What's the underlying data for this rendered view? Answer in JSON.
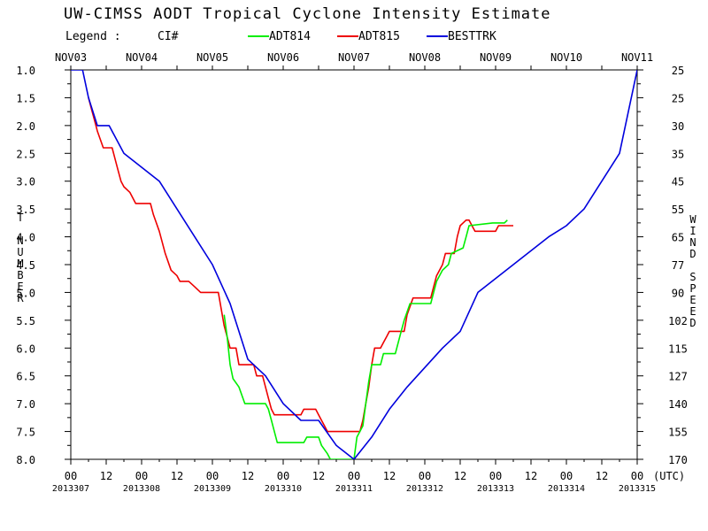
{
  "chart_data": {
    "type": "line",
    "title": "UW-CIMSS AODT Tropical Cyclone Intensity Estimate",
    "legend": {
      "label": "Legend :",
      "ci_label": "CI#",
      "entries": [
        {
          "name": "ADT814",
          "color": "#00ee00"
        },
        {
          "name": "ADT815",
          "color": "#ee0000"
        },
        {
          "name": "BESTTRK",
          "color": "#0000dd"
        }
      ]
    },
    "ylabel_left": "T NUMBER",
    "ylabel_right": "WIND SPEED",
    "x_unit_label": "(UTC)",
    "xlim_hours": [
      0,
      192
    ],
    "ylim": [
      1.0,
      8.0
    ],
    "y_inverted": true,
    "top_dates": [
      "NOV03",
      "NOV04",
      "NOV05",
      "NOV06",
      "NOV07",
      "NOV08",
      "NOV09",
      "NOV10",
      "NOV11"
    ],
    "julian_dates": [
      "2013307",
      "2013308",
      "2013309",
      "2013310",
      "2013311",
      "2013312",
      "2013313",
      "2013314",
      "2013315"
    ],
    "x_tick_labels": [
      "00",
      "12",
      "00",
      "12",
      "00",
      "12",
      "00",
      "12",
      "00",
      "12",
      "00",
      "12",
      "00",
      "12",
      "00",
      "12",
      "00"
    ],
    "left_ticks": [
      "1.0",
      "1.5",
      "2.0",
      "2.5",
      "3.0",
      "3.5",
      "4.0",
      "4.5",
      "5.0",
      "5.5",
      "6.0",
      "6.5",
      "7.0",
      "7.5",
      "8.0"
    ],
    "right_ticks": [
      "25",
      "25",
      "30",
      "35",
      "45",
      "55",
      "65",
      "77",
      "90",
      "102",
      "115",
      "127",
      "140",
      "155",
      "170"
    ],
    "series": [
      {
        "name": "ADT814",
        "color": "#00ee00",
        "points": [
          [
            52,
            5.4
          ],
          [
            53,
            5.8
          ],
          [
            54,
            6.3
          ],
          [
            55,
            6.55
          ],
          [
            57,
            6.7
          ],
          [
            59,
            7.0
          ],
          [
            66,
            7.0
          ],
          [
            67,
            7.1
          ],
          [
            68,
            7.3
          ],
          [
            69,
            7.5
          ],
          [
            70,
            7.7
          ],
          [
            79,
            7.7
          ],
          [
            80,
            7.6
          ],
          [
            84,
            7.6
          ],
          [
            85,
            7.75
          ],
          [
            87,
            7.9
          ],
          [
            88,
            8.0
          ],
          [
            96,
            8.0
          ],
          [
            97,
            7.6
          ],
          [
            99,
            7.4
          ],
          [
            100,
            7.0
          ],
          [
            101,
            6.6
          ],
          [
            102,
            6.3
          ],
          [
            105,
            6.3
          ],
          [
            106,
            6.1
          ],
          [
            110,
            6.1
          ],
          [
            111,
            5.9
          ],
          [
            112,
            5.7
          ],
          [
            113,
            5.5
          ],
          [
            115,
            5.2
          ],
          [
            122,
            5.2
          ],
          [
            123,
            5.0
          ],
          [
            124,
            4.8
          ],
          [
            126,
            4.6
          ],
          [
            128,
            4.5
          ],
          [
            129,
            4.3
          ],
          [
            133,
            4.2
          ],
          [
            134,
            4.0
          ],
          [
            135,
            3.8
          ],
          [
            143,
            3.75
          ],
          [
            147,
            3.75
          ],
          [
            148,
            3.7
          ]
        ]
      },
      {
        "name": "ADT815",
        "color": "#ee0000",
        "points": [
          [
            6,
            1.5
          ],
          [
            7,
            1.7
          ],
          [
            8,
            1.9
          ],
          [
            9,
            2.1
          ],
          [
            11,
            2.4
          ],
          [
            14,
            2.4
          ],
          [
            15,
            2.6
          ],
          [
            16,
            2.8
          ],
          [
            17,
            3.0
          ],
          [
            18,
            3.1
          ],
          [
            20,
            3.2
          ],
          [
            22,
            3.4
          ],
          [
            27,
            3.4
          ],
          [
            28,
            3.6
          ],
          [
            30,
            3.9
          ],
          [
            32,
            4.3
          ],
          [
            34,
            4.6
          ],
          [
            36,
            4.7
          ],
          [
            37,
            4.8
          ],
          [
            40,
            4.8
          ],
          [
            42,
            4.9
          ],
          [
            44,
            5.0
          ],
          [
            50,
            5.0
          ],
          [
            51,
            5.3
          ],
          [
            52,
            5.6
          ],
          [
            53,
            5.8
          ],
          [
            54,
            6.0
          ],
          [
            56,
            6.0
          ],
          [
            57,
            6.3
          ],
          [
            62,
            6.3
          ],
          [
            63,
            6.5
          ],
          [
            65,
            6.5
          ],
          [
            66,
            6.7
          ],
          [
            67,
            6.9
          ],
          [
            68,
            7.1
          ],
          [
            69,
            7.2
          ],
          [
            78,
            7.2
          ],
          [
            79,
            7.1
          ],
          [
            83,
            7.1
          ],
          [
            84,
            7.2
          ],
          [
            85,
            7.3
          ],
          [
            86,
            7.4
          ],
          [
            87,
            7.5
          ],
          [
            98,
            7.5
          ],
          [
            99,
            7.3
          ],
          [
            100,
            7.0
          ],
          [
            101,
            6.7
          ],
          [
            102,
            6.3
          ],
          [
            103,
            6.0
          ],
          [
            105,
            6.0
          ],
          [
            106,
            5.9
          ],
          [
            107,
            5.8
          ],
          [
            108,
            5.7
          ],
          [
            113,
            5.7
          ],
          [
            114,
            5.4
          ],
          [
            116,
            5.1
          ],
          [
            122,
            5.1
          ],
          [
            123,
            4.9
          ],
          [
            124,
            4.7
          ],
          [
            126,
            4.5
          ],
          [
            127,
            4.3
          ],
          [
            130,
            4.3
          ],
          [
            131,
            4.0
          ],
          [
            132,
            3.8
          ],
          [
            134,
            3.7
          ],
          [
            135,
            3.7
          ],
          [
            136,
            3.8
          ],
          [
            137,
            3.9
          ],
          [
            144,
            3.9
          ],
          [
            145,
            3.8
          ],
          [
            150,
            3.8
          ]
        ]
      },
      {
        "name": "BESTTRK",
        "color": "#0000dd",
        "points": [
          [
            0,
            1.0
          ],
          [
            4,
            1.0
          ],
          [
            6,
            1.5
          ],
          [
            9,
            2.0
          ],
          [
            13,
            2.0
          ],
          [
            18,
            2.5
          ],
          [
            30,
            3.0
          ],
          [
            42,
            4.0
          ],
          [
            48,
            4.5
          ],
          [
            54,
            5.2
          ],
          [
            60,
            6.2
          ],
          [
            66,
            6.5
          ],
          [
            72,
            7.0
          ],
          [
            78,
            7.3
          ],
          [
            84,
            7.3
          ],
          [
            90,
            7.75
          ],
          [
            96,
            8.0
          ],
          [
            102,
            7.6
          ],
          [
            108,
            7.1
          ],
          [
            114,
            6.7
          ],
          [
            126,
            6.0
          ],
          [
            132,
            5.7
          ],
          [
            138,
            5.0
          ],
          [
            150,
            4.5
          ],
          [
            162,
            4.0
          ],
          [
            168,
            3.8
          ],
          [
            174,
            3.5
          ],
          [
            180,
            3.0
          ],
          [
            186,
            2.5
          ],
          [
            192,
            1.0
          ]
        ]
      }
    ]
  }
}
